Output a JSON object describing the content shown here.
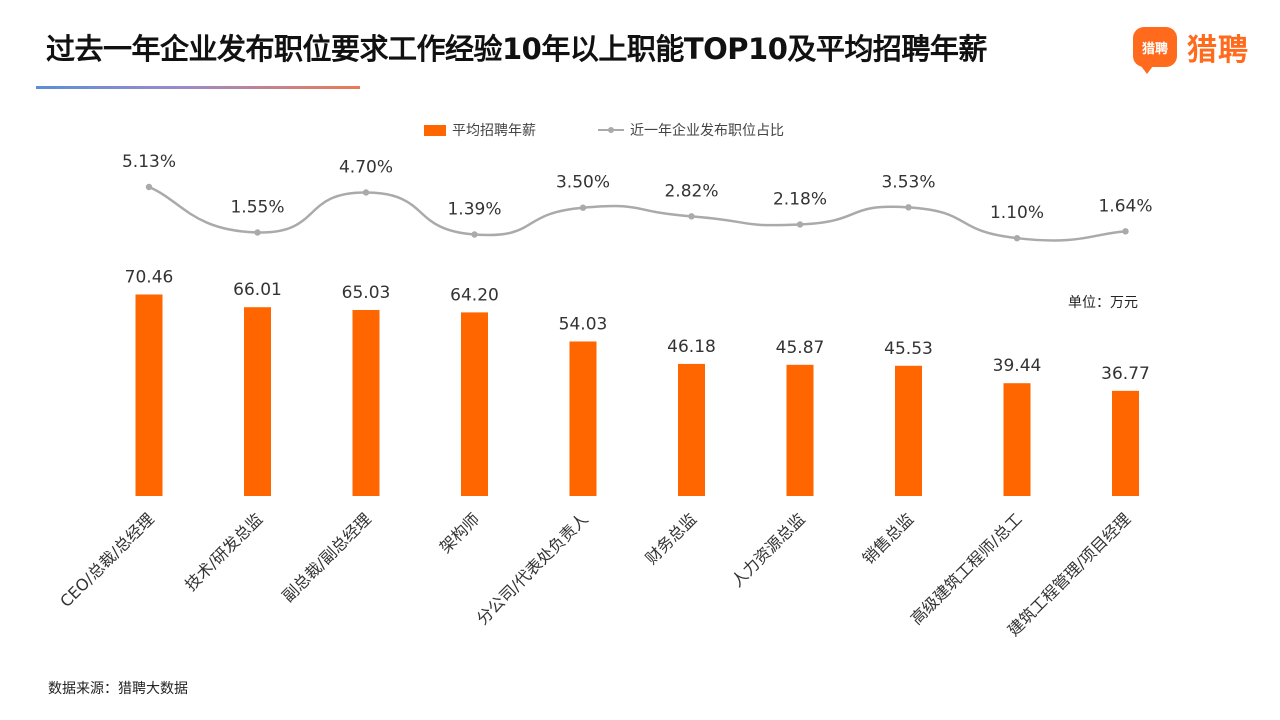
{
  "title": "过去一年企业发布职位要求工作经验10年以上职能TOP10及平均招聘年薪",
  "logo": {
    "badge_text": "猎聘",
    "brand_text": "猎聘"
  },
  "unit_label": "单位：万元",
  "source_label": "数据来源：猎聘大数据",
  "colors": {
    "bar": "#ff6600",
    "line": "#aaaaaa",
    "brand": "#ff6a1c"
  },
  "chart_data": {
    "type": "bar",
    "categories": [
      "CEO/总裁/总经理",
      "技术/研发总监",
      "副总裁/副总经理",
      "架构师",
      "分公司/代表处负责人",
      "财务总监",
      "人力资源总监",
      "销售总监",
      "高级建筑工程师/总工",
      "建筑工程管理/项目经理"
    ],
    "series": [
      {
        "name": "平均招聘年薪",
        "type": "bar",
        "values": [
          70.46,
          66.01,
          65.03,
          64.2,
          54.03,
          46.18,
          45.87,
          45.53,
          39.44,
          36.77
        ],
        "labels": [
          "70.46",
          "66.01",
          "65.03",
          "64.20",
          "54.03",
          "46.18",
          "45.87",
          "45.53",
          "39.44",
          "36.77"
        ]
      },
      {
        "name": "近一年企业发布职位占比",
        "type": "line",
        "values": [
          5.13,
          1.55,
          4.7,
          1.39,
          3.5,
          2.82,
          2.18,
          3.53,
          1.1,
          1.64
        ],
        "labels": [
          "5.13%",
          "1.55%",
          "4.70%",
          "1.39%",
          "3.50%",
          "2.82%",
          "2.18%",
          "3.53%",
          "1.10%",
          "1.64%"
        ]
      }
    ],
    "legend": "top-center",
    "grid": false
  }
}
